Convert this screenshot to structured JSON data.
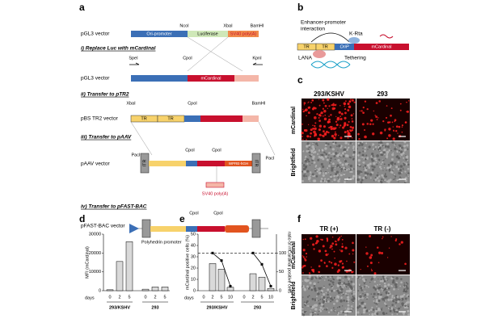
{
  "panel_a": {
    "label": "a",
    "steps": [
      "i) Replace Luc with mCardinal",
      "ii) Transfer to pTR2",
      "iii) Transfer to pAAV",
      "iv) Transfer to pFAST-BAC"
    ],
    "vectors": [
      "pGL3 vector",
      "pGL3 vector",
      "pBS TR2 vector",
      "pAAV vector",
      "pFAST-BAC vector"
    ],
    "features": [
      "Ori-promoter",
      "Luciferase",
      "SV40 poly(A)",
      "mCardinal",
      "TR",
      "TR",
      "ITR",
      "ITR",
      "WPRE-hGH",
      "SV40 poly(A)",
      "Polyhedrin promoter"
    ],
    "sites": [
      "NcoI",
      "XbaI",
      "BamHI",
      "SpeI",
      "CpoI",
      "KpnI",
      "XbaI",
      "CpoI",
      "BamHI",
      "PacI",
      "CpoI",
      "CpoI",
      "PacI",
      "CpoI",
      "CpoI"
    ]
  },
  "panel_b": {
    "label": "b",
    "texts": [
      "Enhancer-promoter",
      "interaction",
      "K-Rta",
      "LANA",
      "Tethering"
    ],
    "features": [
      "TR",
      "TR",
      "OriP",
      "mCardinal"
    ]
  },
  "panel_c": {
    "label": "c",
    "columns": [
      "293/KSHV",
      "293"
    ],
    "rows": [
      "mCardinal",
      "Brightfield"
    ]
  },
  "panel_d": {
    "label": "d",
    "type": "bar",
    "y_label": "MFI (mCardinal)",
    "x_label": "days",
    "days": [
      "0",
      "2",
      "5",
      "0",
      "2",
      "5"
    ],
    "groups": [
      "293/KSHV",
      "293"
    ],
    "values": [
      500,
      15500,
      26000,
      800,
      2000,
      2000
    ],
    "color": "#d9d9d9",
    "ylim": [
      0,
      30000
    ],
    "yticks": [
      0,
      10000,
      20000,
      30000
    ]
  },
  "panel_e": {
    "label": "e",
    "type": "bar",
    "y_label": "mCardinal positive cells (%)",
    "y2_label": "ratio of mCardinal positive cells",
    "x_label": "days",
    "days": [
      "0",
      "2",
      "5",
      "10",
      "0",
      "2",
      "5",
      "10"
    ],
    "groups": [
      "293/KSHV",
      "293"
    ],
    "values": [
      0,
      24,
      19,
      3,
      0,
      15,
      12,
      2
    ],
    "color": "#d9d9d9",
    "ratio": [
      null,
      100,
      80,
      12,
      null,
      100,
      70,
      12
    ],
    "line_color": "#000000",
    "reference_line": 100,
    "ylim": [
      0,
      50
    ],
    "yticks": [
      0,
      10,
      20,
      30,
      40,
      50
    ],
    "y2lim": [
      0,
      150
    ],
    "y2ticks": [
      0,
      50,
      100
    ]
  },
  "panel_f": {
    "label": "f",
    "columns": [
      "TR (+)",
      "TR (-)"
    ],
    "rows": [
      "mCardinal",
      "Brightfield"
    ]
  }
}
